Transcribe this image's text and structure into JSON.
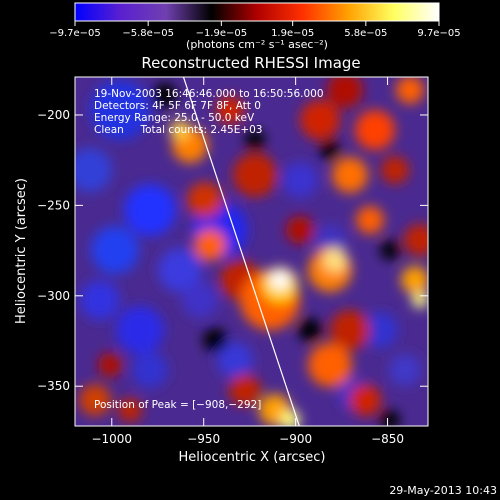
{
  "chart_data": {
    "type": "heatmap",
    "title": "Reconstructed RHESSI Image",
    "xlabel": "Heliocentric X (arcsec)",
    "ylabel": "Heliocentric Y (arcsec)",
    "xlim": [
      -1020,
      -828
    ],
    "ylim": [
      -372,
      -179
    ],
    "x_ticks": [
      -1000,
      -950,
      -900,
      -850
    ],
    "x_tick_labels": [
      "−1000",
      "−950",
      "−900",
      "−850"
    ],
    "y_ticks": [
      -200,
      -250,
      -300,
      -350
    ],
    "y_tick_labels": [
      "−200",
      "−250",
      "−300",
      "−350"
    ],
    "colorbar": {
      "ticks": [
        -9.7e-05,
        -5.8e-05,
        -1.9e-05,
        1.9e-05,
        5.8e-05,
        9.7e-05
      ],
      "tick_labels": [
        "−9.7e−05",
        "−5.8e−05",
        "−1.9e−05",
        "1.9e−05",
        "5.8e−05",
        "9.7e−05"
      ],
      "range": [
        -9.7e-05,
        9.7e-05
      ],
      "unit_label": "(photons cm⁻² s⁻¹ asec⁻²)",
      "colors": [
        "#0000ff",
        "#5a20d0",
        "#7040b0",
        "#000000",
        "#b00000",
        "#ff3000",
        "#ffa000",
        "#ffff60",
        "#ffffff"
      ]
    },
    "annotations": [
      "19-Nov-2003 16:46:46.000 to 16:50:56.000",
      "Detectors: 4F 5F 6F 7F 8F, Att 0",
      "Energy Range: 25.0 - 50.0 keV",
      "Clean     Total counts: 2.45E+03",
      "Position of Peak = [−908,−292]"
    ],
    "peak": [
      -908,
      -292
    ],
    "limb_line": [
      [
        -961,
        -179
      ],
      [
        -898,
        -372
      ]
    ],
    "grid": false
  },
  "timestamp": "29-May-2013 10:43"
}
